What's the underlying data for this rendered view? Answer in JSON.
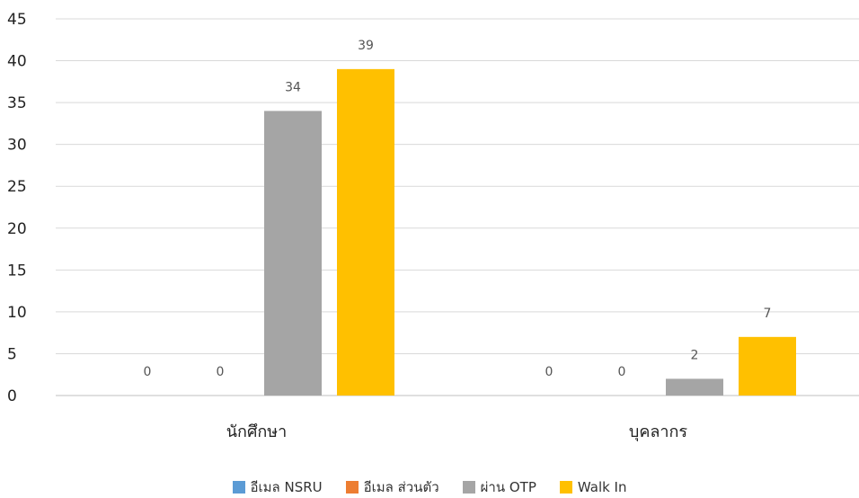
{
  "chart_data": {
    "type": "bar",
    "title": "",
    "xlabel": "",
    "ylabel": "",
    "categories": [
      "นักศึกษา",
      "บุคลากร"
    ],
    "series": [
      {
        "name": "อีเมล NSRU",
        "values": [
          0,
          0
        ],
        "color": "#5B9BD5"
      },
      {
        "name": "อีเมล ส่วนตัว",
        "values": [
          0,
          0
        ],
        "color": "#ED7D31"
      },
      {
        "name": "ผ่าน OTP",
        "values": [
          34,
          2
        ],
        "color": "#A5A5A5"
      },
      {
        "name": "Walk In",
        "values": [
          39,
          7
        ],
        "color": "#FFC000"
      }
    ],
    "ylim": [
      0,
      45
    ],
    "yticks": [
      0,
      5,
      10,
      15,
      20,
      25,
      30,
      35,
      40,
      45
    ],
    "grid": true,
    "legend_position": "bottom",
    "data_labels": true
  }
}
